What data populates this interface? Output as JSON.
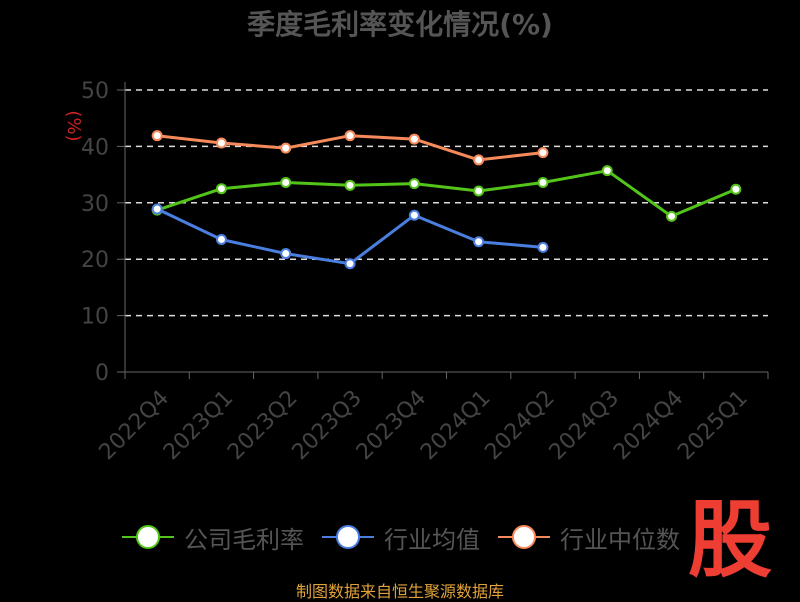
{
  "chart_data": {
    "type": "line",
    "title": "季度毛利率变化情况(%)",
    "ylabel": "(%)",
    "ylim": [
      0,
      50
    ],
    "yticks": [
      0,
      10,
      20,
      30,
      40,
      50
    ],
    "grid": true,
    "legend_position": "bottom",
    "categories": [
      "2022Q4",
      "2023Q1",
      "2023Q2",
      "2023Q3",
      "2023Q4",
      "2024Q1",
      "2024Q2",
      "2024Q3",
      "2024Q4",
      "2025Q1"
    ],
    "series": [
      {
        "name": "公司毛利率",
        "color": "#52c41a",
        "values": [
          28.7,
          32.5,
          33.6,
          33.1,
          33.4,
          32.1,
          33.6,
          35.7,
          27.6,
          32.4
        ]
      },
      {
        "name": "行业均值",
        "color": "#4a7fe0",
        "values": [
          28.9,
          23.5,
          21.0,
          19.2,
          27.8,
          23.1,
          22.1,
          null,
          null,
          null
        ]
      },
      {
        "name": "行业中位数",
        "color": "#f78a5a",
        "values": [
          41.9,
          40.6,
          39.7,
          41.9,
          41.3,
          37.6,
          38.9,
          null,
          null,
          null
        ]
      }
    ]
  },
  "footer": "制图数据来自恒生聚源数据库",
  "logo_text": "股"
}
